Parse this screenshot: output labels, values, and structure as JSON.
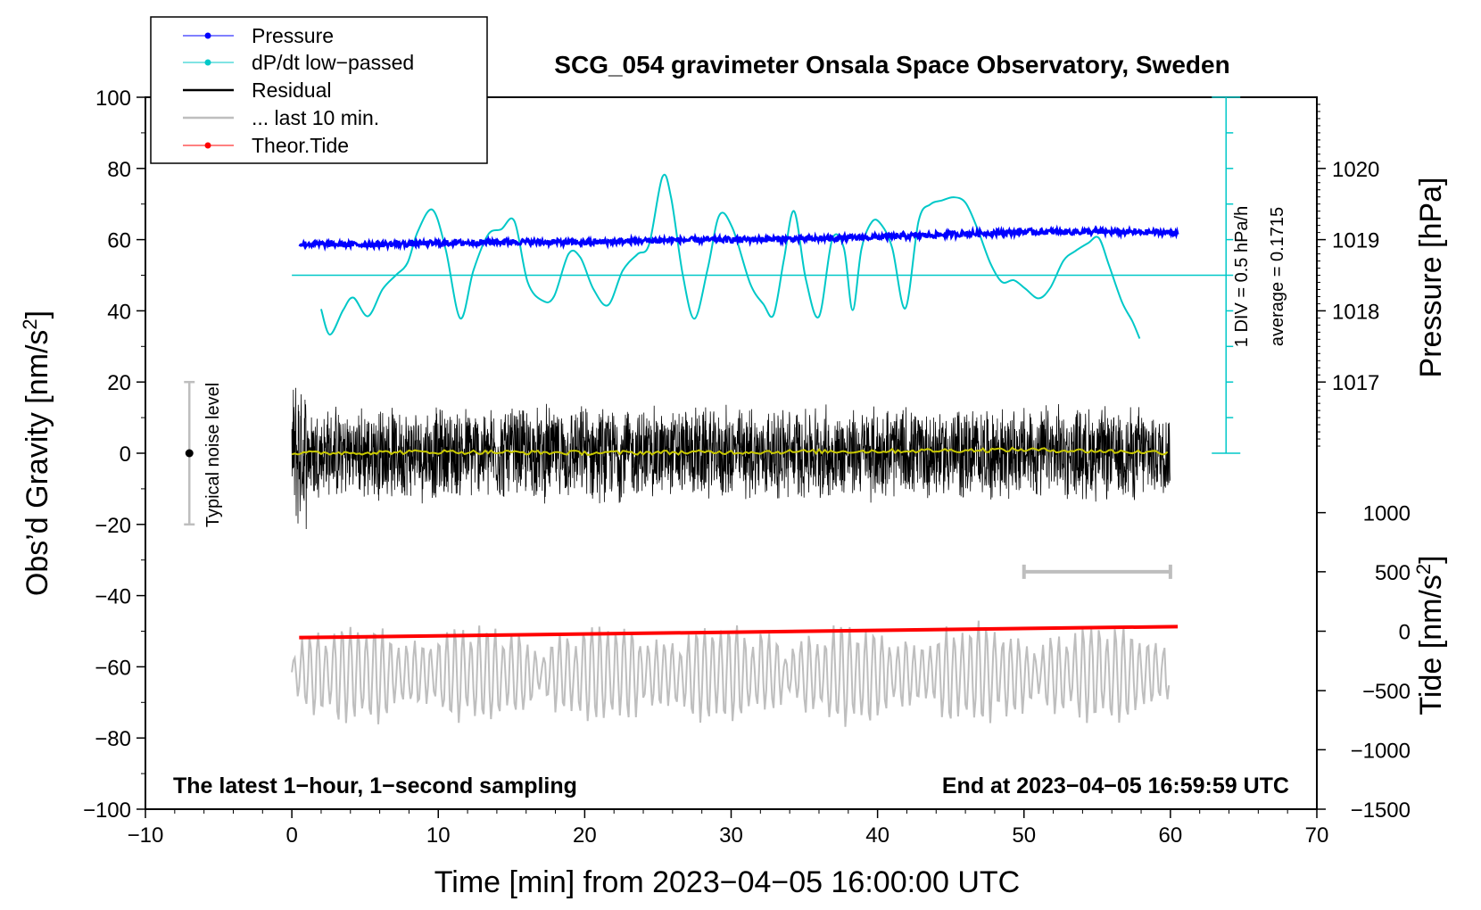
{
  "chart_data": {
    "type": "line",
    "title": "SCG_054 gravimeter Onsala Space Observatory, Sweden",
    "xlabel": "Time [min] from 2023−04−05 16:00:00 UTC",
    "ylabel_main": "Obs’d Gravity [nm/s",
    "ylabel_main_sup": "2",
    "ylabel_main_end": "]",
    "ylabel_pressure": "Pressure [hPa]",
    "ylabel_tide": "Tide [nm/s",
    "ylabel_tide_sup": "2",
    "ylabel_tide_end": "]",
    "xlim": [
      -10,
      70
    ],
    "ylim": [
      -100,
      100
    ],
    "xticks": [
      -10,
      0,
      10,
      20,
      30,
      40,
      50,
      60,
      70
    ],
    "xtick_labels": [
      "−10",
      "0",
      "10",
      "20",
      "30",
      "40",
      "50",
      "60",
      "70"
    ],
    "yticks": [
      100,
      80,
      60,
      40,
      20,
      0,
      -20,
      -40,
      -60,
      -80,
      -100
    ],
    "ytick_labels": [
      "100",
      "80",
      "60",
      "40",
      "20",
      "0",
      "−20",
      "−40",
      "−60",
      "−80",
      "−100"
    ],
    "pressure_axis": {
      "ticks": [
        1020,
        1019,
        1018,
        1017
      ],
      "labels": [
        "1020",
        "1019",
        "1018",
        "1017"
      ],
      "gravity_equiv": [
        80,
        60,
        40,
        20
      ]
    },
    "tide_axis": {
      "ticks": [
        1000,
        500,
        0,
        -500,
        -1000,
        -1500
      ],
      "labels": [
        "1000",
        "500",
        "0",
        "−500",
        "−1000",
        "−1500"
      ],
      "gravity_equiv": [
        -16.7,
        -33.3,
        -50,
        -66.7,
        -83.3,
        -100
      ]
    },
    "legend": {
      "position": "top-left",
      "entries": [
        {
          "label": "Pressure",
          "color": "#0000ff",
          "marker": true
        },
        {
          "label": "dP/dt low−passed",
          "color": "#00c8c8",
          "marker": true
        },
        {
          "label": "Residual",
          "color": "#000000",
          "marker": false
        },
        {
          "label": "... last 10 min.",
          "color": "#bebebe",
          "marker": false
        },
        {
          "label": "Theor.Tide",
          "color": "#ff0000",
          "marker": true
        }
      ]
    },
    "series": [
      {
        "name": "Pressure",
        "color": "#0000ff",
        "x": [
          0.5,
          5,
          10,
          15,
          20,
          25,
          30,
          35,
          40,
          45,
          50,
          55,
          60.5
        ],
        "y": [
          58.8,
          58.6,
          59.0,
          59.4,
          59.2,
          59.8,
          60.0,
          60.2,
          60.7,
          61.5,
          62.2,
          62.2,
          62.0
        ]
      },
      {
        "name": "dP/dt low-passed",
        "color": "#00c8c8",
        "x": [
          2,
          2.6,
          3.5,
          4.2,
          5.2,
          6.2,
          7.1,
          7.9,
          8.6,
          9.6,
          10.5,
          11.5,
          12.4,
          13.4,
          14.3,
          15.2,
          16.1,
          17.1,
          17.9,
          18.9,
          19.7,
          20.6,
          21.6,
          22.6,
          23.6,
          24.4,
          25.3,
          25.9,
          26.7,
          27.5,
          28.4,
          29.2,
          30.1,
          31.3,
          32.2,
          32.9,
          33.6,
          34.3,
          35.1,
          36.0,
          36.9,
          37.7,
          38.3,
          38.9,
          39.6,
          40.2,
          41.0,
          41.9,
          42.8,
          43.6,
          44.4,
          45.2,
          46.0,
          46.8,
          47.7,
          48.5,
          49.3,
          50.1,
          51.0,
          51.8,
          52.7,
          53.5,
          54.4,
          55.1,
          55.8,
          56.7,
          57.4,
          57.9
        ],
        "y": [
          40.5,
          33.3,
          40.2,
          43.7,
          38.5,
          46.1,
          50.0,
          53.5,
          62.3,
          68.4,
          57.3,
          37.9,
          51.3,
          61.4,
          62.9,
          65.2,
          48.1,
          42.9,
          44.0,
          56.0,
          55.0,
          46.1,
          41.6,
          51.3,
          55.9,
          58.7,
          77.6,
          71.8,
          50.1,
          37.8,
          51.8,
          66.9,
          63.2,
          47.7,
          41.9,
          38.9,
          54.3,
          68.0,
          48.9,
          38.4,
          60.0,
          57.6,
          40.2,
          57.4,
          64.9,
          64.5,
          57.7,
          40.7,
          65.2,
          69.9,
          71.0,
          71.9,
          70.4,
          63.3,
          53.4,
          48.1,
          48.6,
          46.2,
          43.5,
          46.5,
          54.1,
          56.8,
          59.1,
          60.5,
          52.9,
          42.4,
          37.1,
          32.2
        ]
      },
      {
        "name": "dP/dt average line",
        "color": "#00c8c8",
        "x": [
          0,
          63.8
        ],
        "y": [
          50,
          50
        ]
      },
      {
        "name": "Residual",
        "color": "#000000",
        "x_range": [
          0,
          60
        ],
        "center": 0,
        "typical_amplitude": 12
      },
      {
        "name": "Residual smoothed",
        "color": "#c8c800",
        "x": [
          0,
          10,
          20,
          30,
          40,
          50,
          60
        ],
        "y": [
          0,
          0.4,
          0.1,
          0.3,
          0.6,
          1.0,
          0.2
        ]
      },
      {
        "name": "... last 10 min.",
        "color": "#bebebe",
        "x_range": [
          0,
          60
        ],
        "center": -62,
        "typical_amplitude": 8
      },
      {
        "name": "Theor.Tide",
        "color": "#ff0000",
        "x": [
          0.5,
          60.5
        ],
        "y": [
          -51.8,
          -48.7
        ]
      }
    ],
    "annotations": {
      "left_bottom": "The latest 1−hour, 1−second sampling",
      "right_bottom": "End at 2023−04−05 16:59:59 UTC",
      "noise_label": "Typical noise level",
      "noise_range": [
        -20,
        20
      ],
      "noise_x": -7,
      "scale_div": "1 DIV = 0.5 hPa/h",
      "scale_avg": "average = 0.1715",
      "scale_bar_x": 63.8,
      "scale_bar_range": [
        0,
        100
      ],
      "grey_bar_x": [
        50,
        60
      ],
      "grey_bar_y": -33.3
    }
  }
}
